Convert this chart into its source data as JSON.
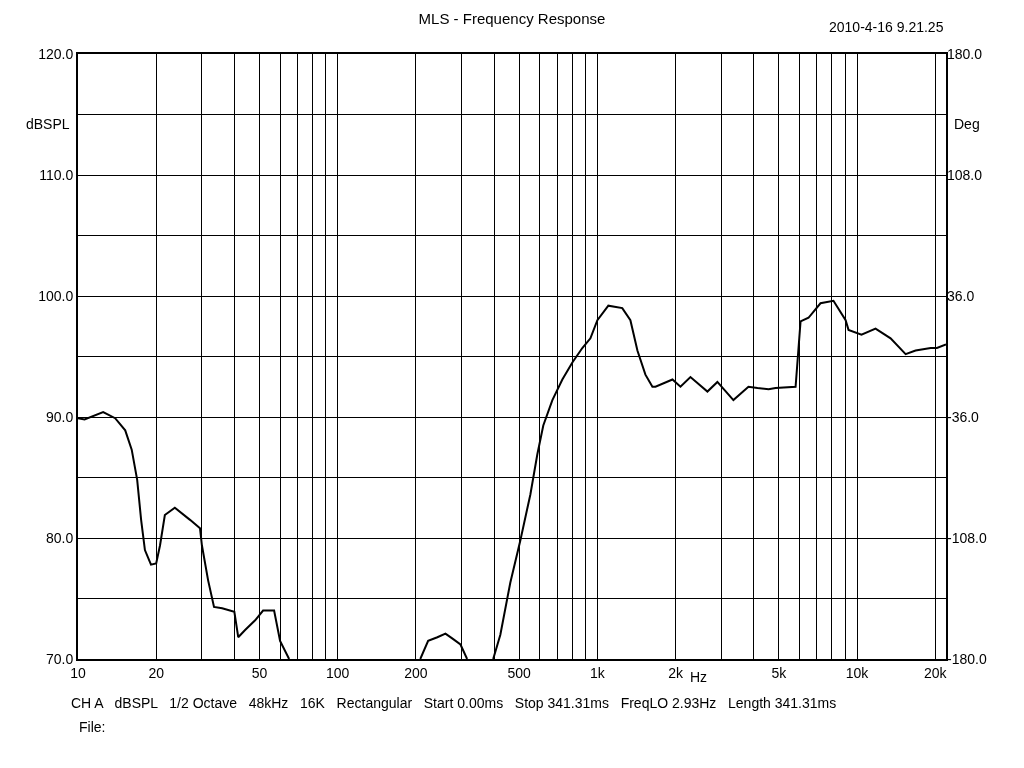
{
  "chart_data": {
    "type": "line",
    "title": "MLS - Frequency Response",
    "xlabel": "Hz",
    "ylabel": "dBSPL",
    "y2label": "Deg",
    "annotations": [
      "2010-4-16 9.21.25",
      "CH A   dBSPL   1/2 Octave   48kHz   16K   Rectangular   Start 0.00ms   Stop 341.31ms   FreqLO 2.93Hz   Length 341.31ms",
      "File:"
    ],
    "log": "x",
    "grid": true,
    "marker": "none",
    "line_style": "solid",
    "xlim": [
      10,
      22000
    ],
    "xticks": [
      10,
      20,
      {
        "value": 30,
        "label": null
      },
      {
        "value": 40,
        "label": null
      },
      50,
      {
        "value": 60,
        "label": null
      },
      {
        "value": 70,
        "label": null
      },
      {
        "value": 80,
        "label": null
      },
      {
        "value": 90,
        "label": null
      },
      100,
      200,
      {
        "value": 300,
        "label": null
      },
      {
        "value": 400,
        "label": null
      },
      500,
      {
        "value": 600,
        "label": null
      },
      {
        "value": 700,
        "label": null
      },
      {
        "value": 800,
        "label": null
      },
      {
        "value": 900,
        "label": null
      },
      {
        "value": 1000,
        "label": "1k"
      },
      {
        "value": 2000,
        "label": "2k"
      },
      {
        "value": 3000,
        "label": null
      },
      {
        "value": 4000,
        "label": null
      },
      {
        "value": 5000,
        "label": "5k"
      },
      {
        "value": 6000,
        "label": null
      },
      {
        "value": 7000,
        "label": null
      },
      {
        "value": 8000,
        "label": null
      },
      {
        "value": 9000,
        "label": null
      },
      {
        "value": 10000,
        "label": "10k"
      },
      {
        "value": 20000,
        "label": "20k"
      }
    ],
    "ylim": [
      70,
      120
    ],
    "yticks": [
      {
        "value": 70,
        "label": "70.0"
      },
      {
        "value": 75,
        "label": null
      },
      {
        "value": 80,
        "label": "80.0"
      },
      {
        "value": 85,
        "label": null
      },
      {
        "value": 90,
        "label": "90.0"
      },
      {
        "value": 95,
        "label": null
      },
      {
        "value": 100,
        "label": "100.0"
      },
      {
        "value": 105,
        "label": null
      },
      {
        "value": 110,
        "label": "110.0"
      },
      {
        "value": 115,
        "label": null
      },
      {
        "value": 120,
        "label": "120.0"
      }
    ],
    "y2lim": [
      -180,
      180
    ],
    "y2ticks": [
      {
        "value": -180,
        "label": "-180.0"
      },
      {
        "value": -108,
        "label": "-108.0"
      },
      {
        "value": -36,
        "label": "-36.0"
      },
      {
        "value": 36,
        "label": "36.0"
      },
      {
        "value": 108,
        "label": "108.0"
      },
      {
        "value": 180,
        "label": "180.0"
      }
    ],
    "series": [
      {
        "color": "#000000",
        "x": [
          10,
          10.6,
          12.5,
          13.9,
          15.2,
          16.1,
          16.9,
          17.5,
          18.1,
          19.1,
          20,
          20.7,
          21.6,
          23.6,
          27,
          29.5,
          30,
          31.7,
          33.4,
          35.9,
          40,
          41.4,
          44,
          48.1,
          51.6,
          56.9,
          60,
          65,
          100,
          208,
          223,
          242,
          260,
          276,
          297,
          315,
          350,
          397,
          423,
          462,
          505,
          552,
          587,
          619,
          671,
          733,
          801,
          875,
          940,
          1000,
          1102,
          1247,
          1340,
          1426,
          1531,
          1629,
          1674,
          1946,
          2089,
          2282,
          2653,
          2898,
          3340,
          3817,
          4137,
          4563,
          4855,
          5797,
          6058,
          6501,
          7230,
          8111,
          9034,
          9269,
          10400,
          11780,
          13460,
          15380,
          16800,
          19200,
          20300,
          22000
        ],
        "values": [
          89.9,
          89.8,
          90.4,
          89.9,
          88.9,
          87.3,
          84.8,
          81.5,
          79.0,
          77.8,
          77.9,
          79.4,
          81.9,
          82.5,
          81.5,
          80.8,
          79.4,
          76.5,
          74.3,
          74.2,
          73.9,
          71.8,
          72.4,
          73.2,
          74.0,
          74.0,
          71.5,
          70.0,
          null,
          70.0,
          71.5,
          71.8,
          72.1,
          71.7,
          71.2,
          70.0,
          null,
          70.0,
          72.0,
          76.3,
          79.8,
          83.6,
          86.9,
          89.3,
          91.4,
          93.1,
          94.5,
          95.7,
          96.5,
          98.0,
          99.2,
          99.0,
          98.0,
          95.5,
          93.5,
          92.5,
          92.5,
          93.1,
          92.5,
          93.3,
          92.1,
          92.9,
          91.4,
          92.5,
          92.4,
          92.3,
          92.4,
          92.5,
          97.9,
          98.2,
          99.4,
          99.6,
          98.0,
          97.2,
          96.8,
          97.3,
          96.5,
          95.2,
          95.5,
          95.7,
          95.7,
          96.0
        ]
      }
    ]
  }
}
